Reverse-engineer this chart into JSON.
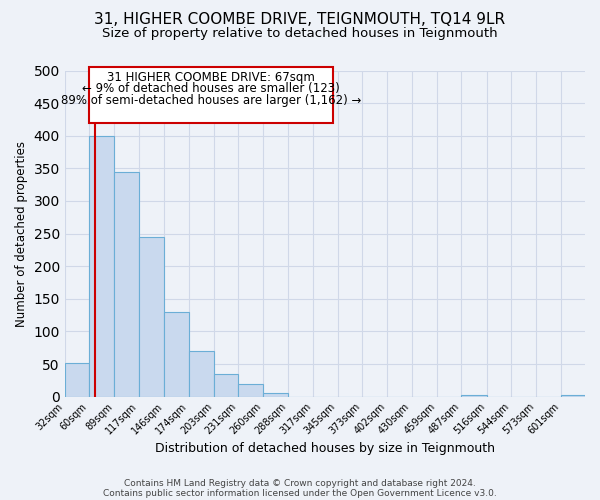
{
  "title": "31, HIGHER COOMBE DRIVE, TEIGNMOUTH, TQ14 9LR",
  "subtitle": "Size of property relative to detached houses in Teignmouth",
  "xlabel": "Distribution of detached houses by size in Teignmouth",
  "ylabel": "Number of detached properties",
  "bin_labels": [
    "32sqm",
    "60sqm",
    "89sqm",
    "117sqm",
    "146sqm",
    "174sqm",
    "203sqm",
    "231sqm",
    "260sqm",
    "288sqm",
    "317sqm",
    "345sqm",
    "373sqm",
    "402sqm",
    "430sqm",
    "459sqm",
    "487sqm",
    "516sqm",
    "544sqm",
    "573sqm",
    "601sqm"
  ],
  "bin_edges": [
    32,
    60,
    89,
    117,
    146,
    174,
    203,
    231,
    260,
    288,
    317,
    345,
    373,
    402,
    430,
    459,
    487,
    516,
    544,
    573,
    601
  ],
  "bar_heights": [
    52,
    400,
    344,
    245,
    130,
    70,
    35,
    20,
    6,
    0,
    0,
    0,
    0,
    0,
    0,
    0,
    3,
    0,
    0,
    0,
    3
  ],
  "bar_color": "#c9d9ee",
  "bar_edge_color": "#6baed6",
  "ylim": [
    0,
    500
  ],
  "yticks": [
    0,
    50,
    100,
    150,
    200,
    250,
    300,
    350,
    400,
    450,
    500
  ],
  "red_line_x": 67,
  "annotation_title": "31 HIGHER COOMBE DRIVE: 67sqm",
  "annotation_line1": "← 9% of detached houses are smaller (123)",
  "annotation_line2": "89% of semi-detached houses are larger (1,162) →",
  "annotation_box_color": "#ffffff",
  "annotation_box_edge": "#cc0000",
  "red_line_color": "#cc0000",
  "footer1": "Contains HM Land Registry data © Crown copyright and database right 2024.",
  "footer2": "Contains public sector information licensed under the Open Government Licence v3.0.",
  "background_color": "#eef2f8",
  "grid_color": "#d0d8e8",
  "title_fontsize": 11,
  "subtitle_fontsize": 9.5
}
